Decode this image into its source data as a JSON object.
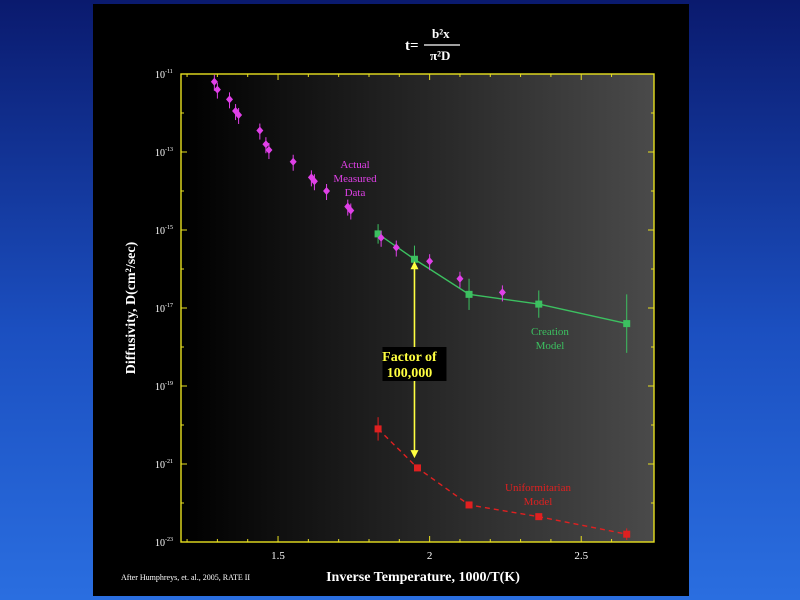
{
  "formula": {
    "lhs": "t=",
    "numerator": "b²x",
    "denominator": "π²D"
  },
  "credit": "After Humphreys, et. al., 2005, RATE II",
  "colors": {
    "measured": "#e040e8",
    "creation": "#3cc060",
    "uniformitarian": "#e02020",
    "axes": "#e8e020",
    "factor": "#ffff40",
    "text": "#ffffff"
  },
  "chart_data": {
    "type": "scatter",
    "title": "",
    "xlabel": "Inverse Temperature, 1000/T(K)",
    "ylabel": "Diffusivity, D(cm²/sec)",
    "xlim": [
      1.18,
      2.74
    ],
    "ylim_log10": [
      -23,
      -11
    ],
    "y_scale": "log",
    "x_ticks": [
      "1.5",
      "2",
      "2.5"
    ],
    "x_tick_values": [
      1.5,
      2.0,
      2.5
    ],
    "y_ticks": [
      {
        "base": "10",
        "exp": "-11",
        "value": -11
      },
      {
        "base": "10",
        "exp": "-13",
        "value": -13
      },
      {
        "base": "10",
        "exp": "-15",
        "value": -15
      },
      {
        "base": "10",
        "exp": "-17",
        "value": -17
      },
      {
        "base": "10",
        "exp": "-19",
        "value": -19
      },
      {
        "base": "10",
        "exp": "-21",
        "value": -21
      },
      {
        "base": "10",
        "exp": "-23",
        "value": -23
      }
    ],
    "series": [
      {
        "name": "Actual Measured Data",
        "label_lines": [
          "Actual",
          "Measured",
          "Data"
        ],
        "style": "points",
        "points": [
          [
            1.29,
            -11.2
          ],
          [
            1.3,
            -11.4
          ],
          [
            1.34,
            -11.65
          ],
          [
            1.36,
            -11.95
          ],
          [
            1.37,
            -12.05
          ],
          [
            1.44,
            -12.45
          ],
          [
            1.46,
            -12.8
          ],
          [
            1.47,
            -12.95
          ],
          [
            1.55,
            -13.25
          ],
          [
            1.61,
            -13.65
          ],
          [
            1.62,
            -13.75
          ],
          [
            1.66,
            -14.0
          ],
          [
            1.73,
            -14.4
          ],
          [
            1.74,
            -14.5
          ],
          [
            1.84,
            -15.2
          ],
          [
            1.89,
            -15.45
          ],
          [
            2.0,
            -15.8
          ],
          [
            2.1,
            -16.25
          ],
          [
            2.24,
            -16.6
          ]
        ]
      },
      {
        "name": "Creation Model",
        "label_lines": [
          "Creation",
          "Model"
        ],
        "style": "line-square",
        "points": [
          [
            1.83,
            -15.1
          ],
          [
            1.95,
            -15.75
          ],
          [
            2.13,
            -16.65
          ],
          [
            2.36,
            -16.9
          ],
          [
            2.65,
            -17.4
          ]
        ],
        "err": [
          0.25,
          0.35,
          0.4,
          0.35,
          0.75
        ]
      },
      {
        "name": "Uniformitarian Model",
        "label_lines": [
          "Uniformitarian",
          "Model"
        ],
        "style": "dashed-square",
        "points": [
          [
            1.83,
            -20.1
          ],
          [
            1.96,
            -21.1
          ],
          [
            2.13,
            -22.05
          ],
          [
            2.36,
            -22.35
          ],
          [
            2.65,
            -22.8
          ]
        ],
        "err": [
          0.3,
          0,
          0,
          0,
          0.15
        ]
      }
    ],
    "annotation": {
      "lines": [
        "Factor of",
        "100,000"
      ],
      "x": 1.95,
      "y_from": -15.75,
      "y_to": -20.85
    }
  }
}
